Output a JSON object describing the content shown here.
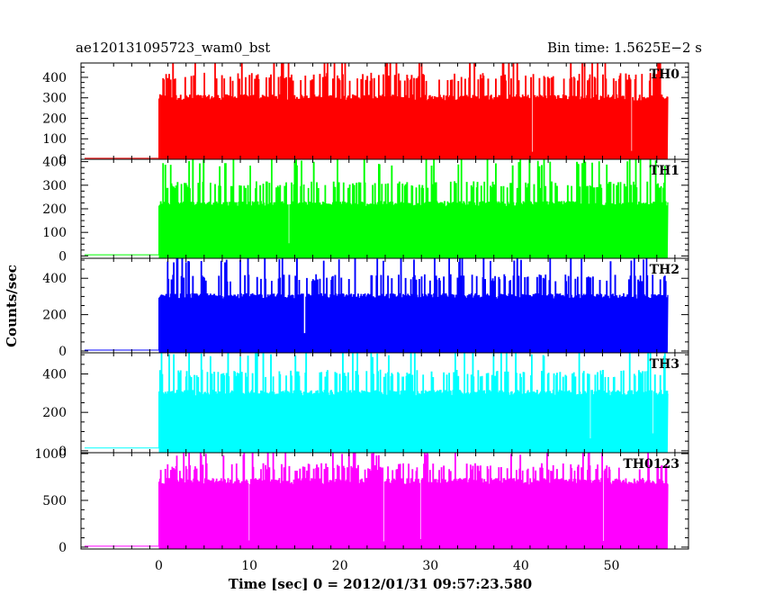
{
  "header": {
    "title": "ae120131095723_wam0_bst",
    "bin_time": "Bin time: 1.5625E−2 s"
  },
  "chart_data": {
    "type": "line",
    "xlabel": "Time [sec] 0 = 2012/01/31 09:57:23.580",
    "ylabel": "Counts/sec",
    "xlim": [
      -8.6,
      58.5
    ],
    "x_ticks": [
      0,
      10,
      20,
      30,
      40,
      50
    ],
    "x_tick_labels": [
      "0",
      "10",
      "20",
      "30",
      "40",
      "50"
    ],
    "data_x_range": [
      -8.2,
      56.2
    ],
    "trigger_time": 0,
    "panels": [
      {
        "name": "TH0",
        "color": "#ff0000",
        "ylim": [
          0,
          470
        ],
        "y_ticks": [
          0,
          100,
          200,
          300,
          400
        ],
        "y_tick_labels": [
          "0",
          "100",
          "200",
          "300",
          "400"
        ],
        "pre_trigger_level": 5,
        "baseline": 32,
        "common_level": 300,
        "spike_levels": [
          400,
          480
        ]
      },
      {
        "name": "TH1",
        "color": "#00ff00",
        "ylim": [
          -10,
          410
        ],
        "y_ticks": [
          0,
          100,
          200,
          300,
          400
        ],
        "y_tick_labels": [
          "0",
          "100",
          "200",
          "300",
          "400"
        ],
        "pre_trigger_level": 5,
        "baseline": 40,
        "common_level": 220,
        "spike_levels": [
          300,
          390
        ]
      },
      {
        "name": "TH2",
        "color": "#0000ff",
        "ylim": [
          -10,
          510
        ],
        "y_ticks": [
          0,
          200,
          400
        ],
        "y_tick_labels": [
          "0",
          "200",
          "400"
        ],
        "pre_trigger_level": 5,
        "baseline": 75,
        "common_level": 300,
        "spike_levels": [
          400,
          500
        ]
      },
      {
        "name": "TH3",
        "color": "#00ffff",
        "ylim": [
          -10,
          510
        ],
        "y_ticks": [
          0,
          200,
          400
        ],
        "y_tick_labels": [
          "0",
          "200",
          "400"
        ],
        "pre_trigger_level": 15,
        "baseline": 75,
        "common_level": 300,
        "spike_levels": [
          400,
          500
        ]
      },
      {
        "name": "TH0123",
        "color": "#ff00ff",
        "ylim": [
          -20,
          1010
        ],
        "y_ticks": [
          0,
          500,
          1000
        ],
        "y_tick_labels": [
          "0",
          "500",
          "1000"
        ],
        "pre_trigger_level": 10,
        "baseline": 60,
        "common_level": 700,
        "spike_levels": [
          850,
          1000
        ]
      }
    ]
  }
}
